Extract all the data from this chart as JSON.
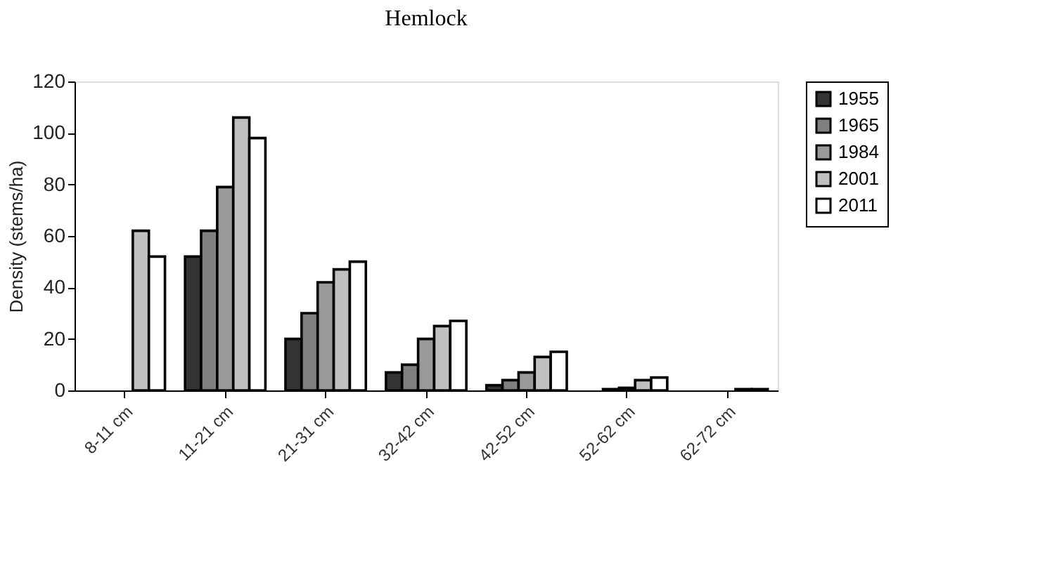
{
  "chart_data": {
    "type": "bar",
    "title": "Hemlock",
    "ylabel": "Density (stems/ha)",
    "categories": [
      "8-11 cm",
      "11-21 cm",
      "21-31 cm",
      "32-42 cm",
      "42-52 cm",
      "52-62 cm",
      "62-72 cm"
    ],
    "series": [
      {
        "name": "1955",
        "color": "#333333",
        "values": [
          null,
          52,
          20,
          7,
          2,
          null,
          null
        ]
      },
      {
        "name": "1965",
        "color": "#808080",
        "values": [
          null,
          62,
          30,
          10,
          4,
          0.5,
          null
        ]
      },
      {
        "name": "1984",
        "color": "#999999",
        "values": [
          null,
          79,
          42,
          20,
          7,
          1,
          null
        ]
      },
      {
        "name": "2001",
        "color": "#c0c0c0",
        "values": [
          62,
          106,
          47,
          25,
          13,
          4,
          0.5
        ]
      },
      {
        "name": "2011",
        "color": "#ffffff",
        "values": [
          52,
          98,
          50,
          27,
          15,
          5,
          0.5
        ]
      }
    ],
    "ylim": [
      0,
      120
    ],
    "yticks": [
      0,
      20,
      40,
      60,
      80,
      100,
      120
    ],
    "grid": false,
    "legend": "right"
  }
}
